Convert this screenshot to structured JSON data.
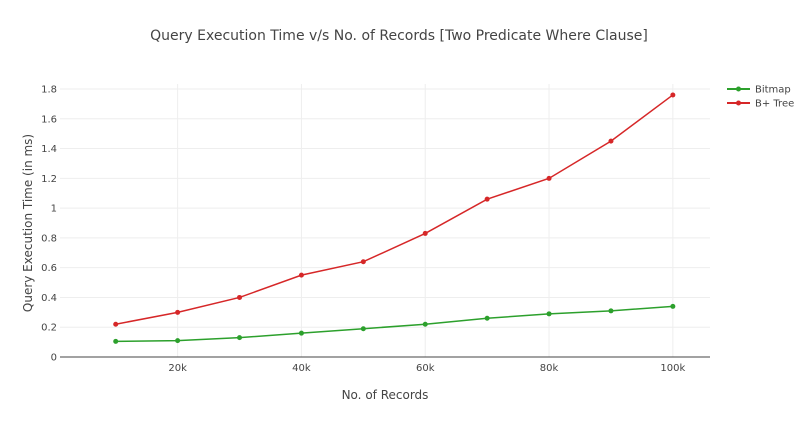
{
  "chart_data": {
    "type": "line",
    "title": "Query Execution Time v/s No. of Records [Two Predicate Where Clause]",
    "xlabel": "No. of Records",
    "ylabel": "Query Execution Time (in ms)",
    "x": [
      10000,
      20000,
      30000,
      40000,
      50000,
      60000,
      70000,
      80000,
      90000,
      100000
    ],
    "xticks": [
      {
        "v": 20000,
        "label": "20k"
      },
      {
        "v": 40000,
        "label": "40k"
      },
      {
        "v": 60000,
        "label": "60k"
      },
      {
        "v": 80000,
        "label": "80k"
      },
      {
        "v": 100000,
        "label": "100k"
      }
    ],
    "yticks": [
      {
        "v": 0,
        "label": "0"
      },
      {
        "v": 0.2,
        "label": "0.2"
      },
      {
        "v": 0.4,
        "label": "0.4"
      },
      {
        "v": 0.6,
        "label": "0.6"
      },
      {
        "v": 0.8,
        "label": "0.8"
      },
      {
        "v": 1,
        "label": "1"
      },
      {
        "v": 1.2,
        "label": "1.2"
      },
      {
        "v": 1.4,
        "label": "1.4"
      },
      {
        "v": 1.6,
        "label": "1.6"
      },
      {
        "v": 1.8,
        "label": "1.8"
      }
    ],
    "xlim": [
      1000,
      106000
    ],
    "ylim": [
      0,
      1.8
    ],
    "grid": true,
    "legend": "top-right",
    "series": [
      {
        "name": "Bitmap",
        "color": "#2ca02c",
        "values": [
          0.105,
          0.11,
          0.13,
          0.16,
          0.19,
          0.22,
          0.26,
          0.29,
          0.31,
          0.34
        ]
      },
      {
        "name": "B+ Tree",
        "color": "#d62728",
        "values": [
          0.22,
          0.3,
          0.4,
          0.55,
          0.64,
          0.83,
          1.06,
          1.2,
          1.45,
          1.76
        ]
      }
    ]
  }
}
